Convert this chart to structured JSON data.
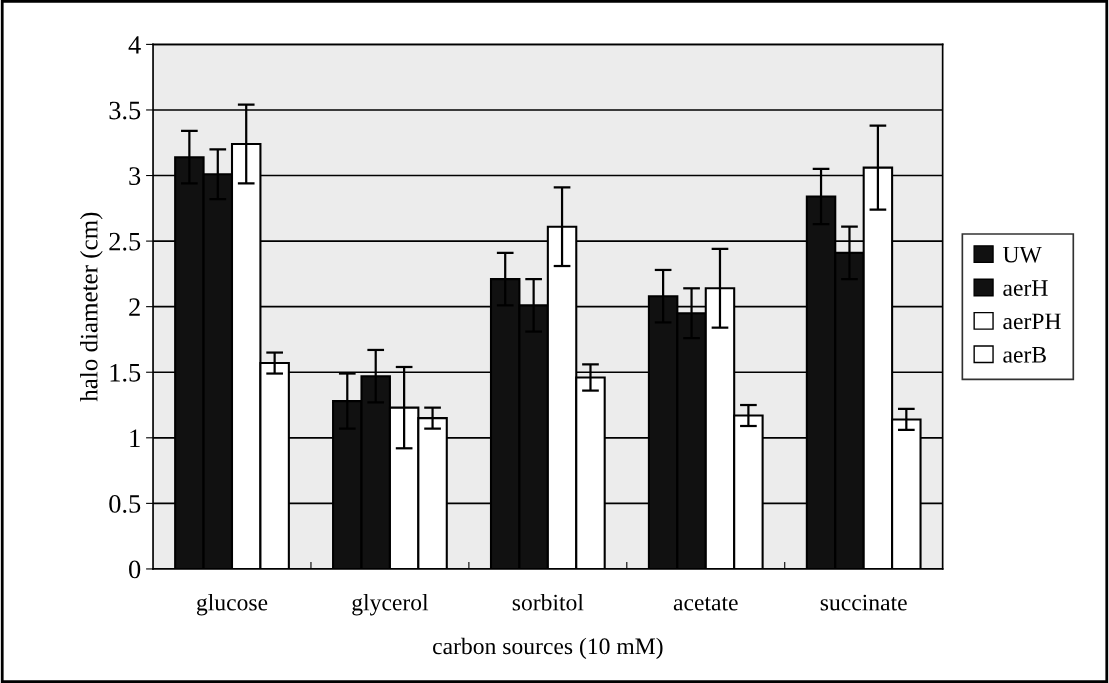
{
  "chart_data": {
    "type": "bar",
    "xlabel": "carbon sources (10 mM)",
    "ylabel": "halo diameter (cm)",
    "categories": [
      "glucose",
      "glycerol",
      "sorbitol",
      "acetate",
      "succinate"
    ],
    "series": [
      {
        "name": "UW",
        "color": "#111111",
        "values": [
          3.14,
          1.28,
          2.21,
          2.08,
          2.84
        ],
        "errors": [
          0.2,
          0.21,
          0.2,
          0.2,
          0.21
        ]
      },
      {
        "name": "aerH",
        "color": "#111111",
        "values": [
          3.01,
          1.47,
          2.01,
          1.95,
          2.41
        ],
        "errors": [
          0.19,
          0.2,
          0.2,
          0.19,
          0.2
        ]
      },
      {
        "name": "aerPH",
        "color": "#ffffff",
        "values": [
          3.24,
          1.23,
          2.61,
          2.14,
          3.06
        ],
        "errors": [
          0.3,
          0.31,
          0.3,
          0.3,
          0.32
        ]
      },
      {
        "name": "aerB",
        "color": "#ffffff",
        "values": [
          1.57,
          1.15,
          1.46,
          1.17,
          1.14
        ],
        "errors": [
          0.08,
          0.08,
          0.1,
          0.08,
          0.08
        ]
      }
    ],
    "ylim": [
      0,
      4
    ],
    "yticks": [
      0,
      0.5,
      1,
      1.5,
      2,
      2.5,
      3,
      3.5,
      4
    ],
    "grid": "y",
    "legend": "right"
  }
}
